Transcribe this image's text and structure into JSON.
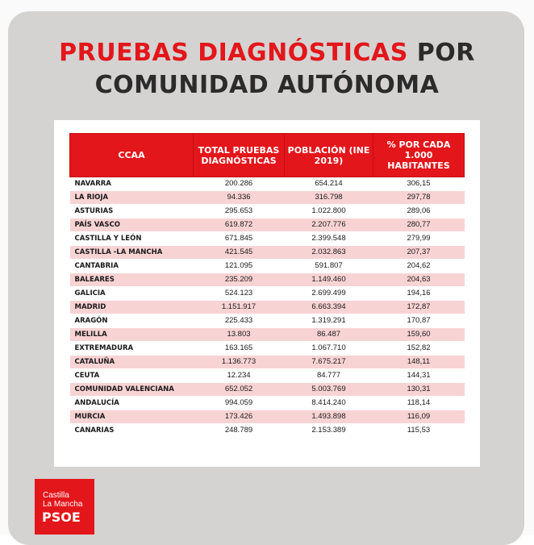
{
  "title": {
    "line1_red": "PRUEBAS DIAGNÓSTICAS",
    "line1_dark": "POR",
    "line2": "COMUNIDAD AUTÓNOMA"
  },
  "table": {
    "columns": [
      "CCAA",
      "TOTAL PRUEBAS DIAGNÓSTICAS",
      "POBLACIÓN (INE 2019)",
      "% POR CADA 1.000 HABITANTES"
    ],
    "rows": [
      [
        "NAVARRA",
        "200.286",
        "654.214",
        "306,15"
      ],
      [
        "LA RIOJA",
        "94.336",
        "316.798",
        "297,78"
      ],
      [
        "ASTURIAS",
        "295.653",
        "1.022.800",
        "289,06"
      ],
      [
        "PAÍS VASCO",
        "619.872",
        "2.207.776",
        "280,77"
      ],
      [
        "CASTILLA Y LEÓN",
        "671.845",
        "2.399.548",
        "279,99"
      ],
      [
        "CASTILLA -LA MANCHA",
        "421.545",
        "2.032.863",
        "207,37"
      ],
      [
        "CANTABRIA",
        "121.095",
        "591.807",
        "204,62"
      ],
      [
        "BALEARES",
        "235.209",
        "1.149.460",
        "204,63"
      ],
      [
        "GALICIA",
        "524.123",
        "2.699.499",
        "194,16"
      ],
      [
        "MADRID",
        "1.151.917",
        "6.663.394",
        "172,87"
      ],
      [
        "ARAGÓN",
        "225.433",
        "1.319.291",
        "170,87"
      ],
      [
        "MELILLA",
        "13.803",
        "86.487",
        "159,60"
      ],
      [
        "EXTREMADURA",
        "163.165",
        "1.067.710",
        "152,82"
      ],
      [
        "CATALUÑA",
        "1.136.773",
        "7.675.217",
        "148,11"
      ],
      [
        "CEUTA",
        "12.234",
        "84.777",
        "144,31"
      ],
      [
        "COMUNIDAD VALENCIANA",
        "652.052",
        "5.003.769",
        "130,31"
      ],
      [
        "ANDALUCÍA",
        "994.059",
        "8.414.240",
        "118,14"
      ],
      [
        "MURCIA",
        "173.426",
        "1.493.898",
        "116,09"
      ],
      [
        "CANARIAS",
        "248.789",
        "2.153.389",
        "115,53"
      ]
    ]
  },
  "logo": {
    "line1": "Castilla",
    "line2": "La Mancha",
    "brand": "PSOE"
  },
  "colors": {
    "accent": "#e3161b",
    "row_tint": "#f8d3d4",
    "title_dark": "#2b2b2b",
    "card_bg": "#d4d3d2"
  }
}
